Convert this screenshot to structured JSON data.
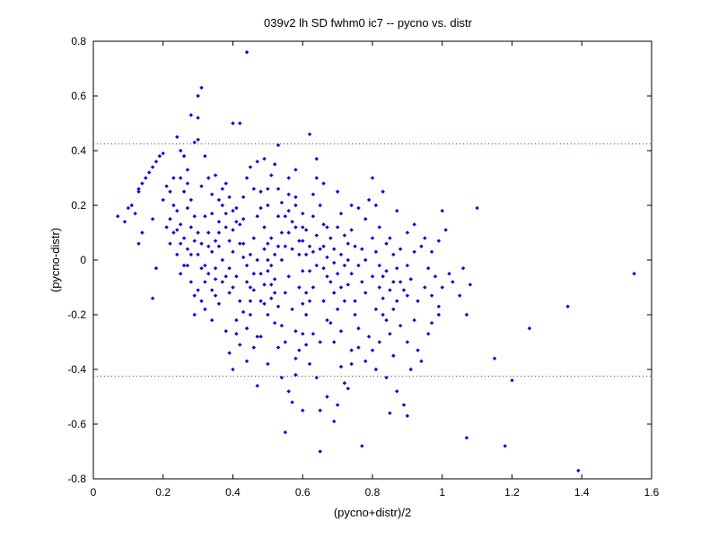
{
  "chart_data": {
    "type": "scatter",
    "title": "039v2 lh SD fwhm0 ic7 -- pycno vs. distr",
    "xlabel": "(pycno+distr)/2",
    "ylabel": "(pycno-distr)",
    "xlim": [
      0,
      1.6
    ],
    "ylim": [
      -0.8,
      0.8
    ],
    "xticks": [
      "0",
      "0.2",
      "0.4",
      "0.6",
      "0.8",
      "1",
      "1.2",
      "1.4",
      "1.6"
    ],
    "yticks": [
      "0.8",
      "0.6",
      "0.4",
      "0.2",
      "0",
      "-0.2",
      "-0.4",
      "-0.6",
      "-0.8"
    ],
    "grid": false,
    "marker_color": "#0000ff",
    "threshold_color": "#ff0000",
    "thresholds": [
      0.425,
      -0.425
    ],
    "points": [
      [
        0.07,
        0.16
      ],
      [
        0.09,
        0.14
      ],
      [
        0.1,
        0.19
      ],
      [
        0.11,
        0.2
      ],
      [
        0.12,
        0.17
      ],
      [
        0.13,
        0.25
      ],
      [
        0.13,
        0.26
      ],
      [
        0.14,
        0.28
      ],
      [
        0.15,
        0.3
      ],
      [
        0.16,
        0.32
      ],
      [
        0.17,
        0.34
      ],
      [
        0.18,
        0.36
      ],
      [
        0.19,
        0.38
      ],
      [
        0.2,
        0.39
      ],
      [
        0.14,
        0.1
      ],
      [
        0.13,
        0.06
      ],
      [
        0.17,
        0.15
      ],
      [
        0.18,
        -0.03
      ],
      [
        0.17,
        -0.14
      ],
      [
        0.2,
        0.22
      ],
      [
        0.21,
        0.27
      ],
      [
        0.22,
        0.25
      ],
      [
        0.23,
        0.2
      ],
      [
        0.24,
        0.45
      ],
      [
        0.25,
        0.4
      ],
      [
        0.26,
        0.38
      ],
      [
        0.27,
        0.33
      ],
      [
        0.25,
        0.3
      ],
      [
        0.28,
        0.53
      ],
      [
        0.3,
        0.52
      ],
      [
        0.31,
        0.63
      ],
      [
        0.3,
        0.6
      ],
      [
        0.29,
        0.43
      ],
      [
        0.3,
        0.44
      ],
      [
        0.32,
        0.38
      ],
      [
        0.25,
        0.13
      ],
      [
        0.26,
        0.08
      ],
      [
        0.27,
        0.04
      ],
      [
        0.22,
        0.15
      ],
      [
        0.24,
        0.02
      ],
      [
        0.27,
        -0.02
      ],
      [
        0.28,
        -0.08
      ],
      [
        0.3,
        -0.11
      ],
      [
        0.29,
        -0.2
      ],
      [
        0.32,
        -0.18
      ],
      [
        0.34,
        -0.22
      ],
      [
        0.35,
        -0.13
      ],
      [
        0.31,
        0.06
      ],
      [
        0.33,
        0.1
      ],
      [
        0.34,
        0.17
      ],
      [
        0.36,
        0.22
      ],
      [
        0.35,
        0.31
      ],
      [
        0.38,
        0.28
      ],
      [
        0.36,
        0.05
      ],
      [
        0.37,
        0.0
      ],
      [
        0.39,
        -0.03
      ],
      [
        0.4,
        0.11
      ],
      [
        0.4,
        0.5
      ],
      [
        0.42,
        0.5
      ],
      [
        0.44,
        0.76
      ],
      [
        0.38,
        -0.26
      ],
      [
        0.39,
        -0.34
      ],
      [
        0.41,
        -0.27
      ],
      [
        0.42,
        -0.31
      ],
      [
        0.44,
        -0.37
      ],
      [
        0.45,
        -0.2
      ],
      [
        0.45,
        -0.1
      ],
      [
        0.46,
        -0.05
      ],
      [
        0.4,
        -0.4
      ],
      [
        0.47,
        -0.46
      ],
      [
        0.5,
        -0.38
      ],
      [
        0.48,
        -0.28
      ],
      [
        0.5,
        -0.2
      ],
      [
        0.51,
        -0.14
      ],
      [
        0.52,
        -0.07
      ],
      [
        0.54,
        0.0
      ],
      [
        0.55,
        0.05
      ],
      [
        0.56,
        0.1
      ],
      [
        0.53,
        0.16
      ],
      [
        0.5,
        0.2
      ],
      [
        0.48,
        0.25
      ],
      [
        0.47,
        0.36
      ],
      [
        0.49,
        0.37
      ],
      [
        0.52,
        0.35
      ],
      [
        0.56,
        0.3
      ],
      [
        0.58,
        0.23
      ],
      [
        0.6,
        0.17
      ],
      [
        0.6,
        0.07
      ],
      [
        0.61,
        0.02
      ],
      [
        0.62,
        -0.04
      ],
      [
        0.63,
        -0.1
      ],
      [
        0.61,
        -0.2
      ],
      [
        0.6,
        -0.27
      ],
      [
        0.59,
        -0.33
      ],
      [
        0.58,
        -0.42
      ],
      [
        0.56,
        -0.48
      ],
      [
        0.54,
        -0.43
      ],
      [
        0.53,
        -0.32
      ],
      [
        0.55,
        -0.63
      ],
      [
        0.57,
        -0.52
      ],
      [
        0.6,
        -0.55
      ],
      [
        0.62,
        -0.38
      ],
      [
        0.64,
        -0.43
      ],
      [
        0.65,
        -0.55
      ],
      [
        0.67,
        -0.5
      ],
      [
        0.65,
        -0.7
      ],
      [
        0.69,
        -0.59
      ],
      [
        0.7,
        -0.53
      ],
      [
        0.72,
        -0.45
      ],
      [
        0.73,
        -0.47
      ],
      [
        0.71,
        -0.39
      ],
      [
        0.74,
        -0.33
      ],
      [
        0.76,
        -0.25
      ],
      [
        0.75,
        -0.15
      ],
      [
        0.77,
        -0.08
      ],
      [
        0.78,
        0.0
      ],
      [
        0.8,
        -0.06
      ],
      [
        0.82,
        -0.1
      ],
      [
        0.83,
        -0.2
      ],
      [
        0.85,
        -0.27
      ],
      [
        0.86,
        -0.35
      ],
      [
        0.84,
        -0.43
      ],
      [
        0.87,
        -0.48
      ],
      [
        0.85,
        -0.56
      ],
      [
        0.77,
        -0.68
      ],
      [
        0.81,
        -0.4
      ],
      [
        0.89,
        -0.53
      ],
      [
        0.9,
        -0.57
      ],
      [
        0.91,
        -0.4
      ],
      [
        0.93,
        -0.33
      ],
      [
        0.94,
        -0.37
      ],
      [
        0.92,
        -0.22
      ],
      [
        0.96,
        -0.27
      ],
      [
        0.97,
        -0.13
      ],
      [
        0.99,
        -0.17
      ],
      [
        0.98,
        -0.06
      ],
      [
        0.99,
        0.07
      ],
      [
        1.0,
        0.18
      ],
      [
        1.01,
        0.11
      ],
      [
        1.03,
        -0.08
      ],
      [
        1.05,
        -0.13
      ],
      [
        1.06,
        -0.03
      ],
      [
        1.07,
        -0.2
      ],
      [
        1.08,
        -0.09
      ],
      [
        1.1,
        0.19
      ],
      [
        1.07,
        -0.65
      ],
      [
        1.15,
        -0.36
      ],
      [
        1.18,
        -0.68
      ],
      [
        1.2,
        -0.44
      ],
      [
        1.25,
        -0.25
      ],
      [
        1.36,
        -0.17
      ],
      [
        1.39,
        -0.77
      ],
      [
        1.55,
        -0.05
      ],
      [
        0.9,
        0.1
      ],
      [
        0.88,
        0.04
      ],
      [
        0.86,
        0.02
      ],
      [
        0.84,
        0.06
      ],
      [
        0.82,
        0.12
      ],
      [
        0.8,
        0.3
      ],
      [
        0.79,
        0.22
      ],
      [
        0.76,
        0.19
      ],
      [
        0.74,
        0.11
      ],
      [
        0.73,
        0.06
      ],
      [
        0.71,
        0.02
      ],
      [
        0.69,
        -0.01
      ],
      [
        0.68,
        0.08
      ],
      [
        0.66,
        0.13
      ],
      [
        0.65,
        0.2
      ],
      [
        0.63,
        0.24
      ],
      [
        0.62,
        0.46
      ],
      [
        0.64,
        0.3
      ],
      [
        0.67,
        -0.06
      ],
      [
        0.66,
        -0.15
      ],
      [
        0.68,
        -0.23
      ],
      [
        0.69,
        -0.12
      ],
      [
        0.7,
        -0.18
      ],
      [
        0.72,
        -0.02
      ],
      [
        0.73,
        -0.09
      ],
      [
        0.75,
        -0.2
      ],
      [
        0.78,
        -0.12
      ],
      [
        0.79,
        -0.28
      ],
      [
        0.81,
        -0.18
      ],
      [
        0.83,
        -0.14
      ],
      [
        0.84,
        -0.04
      ],
      [
        0.86,
        -0.08
      ],
      [
        0.87,
        -0.15
      ],
      [
        0.89,
        -0.11
      ],
      [
        0.9,
        -0.02
      ],
      [
        0.91,
        -0.07
      ],
      [
        0.92,
        0.03
      ],
      [
        0.94,
        0.05
      ],
      [
        0.95,
        -0.1
      ],
      [
        0.93,
        -0.15
      ],
      [
        0.97,
        0.03
      ],
      [
        0.52,
        0.02
      ],
      [
        0.51,
        0.08
      ],
      [
        0.5,
        -0.04
      ],
      [
        0.49,
        0.12
      ],
      [
        0.47,
        0.16
      ],
      [
        0.46,
        0.08
      ],
      [
        0.45,
        0.02
      ],
      [
        0.44,
        -0.08
      ],
      [
        0.43,
        0.06
      ],
      [
        0.42,
        0.13
      ],
      [
        0.41,
        0.19
      ],
      [
        0.43,
        0.23
      ],
      [
        0.44,
        0.3
      ],
      [
        0.46,
        0.26
      ],
      [
        0.48,
        0.19
      ],
      [
        0.49,
        0.04
      ],
      [
        0.5,
        0.0
      ],
      [
        0.51,
        -0.09
      ],
      [
        0.53,
        -0.17
      ],
      [
        0.54,
        -0.24
      ],
      [
        0.55,
        -0.12
      ],
      [
        0.56,
        -0.06
      ],
      [
        0.57,
        0.04
      ],
      [
        0.58,
        0.12
      ],
      [
        0.59,
        0.07
      ],
      [
        0.6,
        -0.04
      ],
      [
        0.61,
        -0.12
      ],
      [
        0.62,
        -0.15
      ],
      [
        0.63,
        0.03
      ],
      [
        0.64,
        -0.02
      ],
      [
        0.65,
        0.04
      ],
      [
        0.66,
        -0.03
      ],
      [
        0.67,
        0.12
      ],
      [
        0.7,
        0.12
      ],
      [
        0.71,
        0.17
      ],
      [
        0.72,
        0.09
      ],
      [
        0.31,
        0.27
      ],
      [
        0.33,
        0.3
      ],
      [
        0.34,
        0.24
      ],
      [
        0.35,
        0.07
      ],
      [
        0.36,
        0.14
      ],
      [
        0.37,
        0.2
      ],
      [
        0.38,
        0.12
      ],
      [
        0.39,
        0.07
      ],
      [
        0.4,
        0.03
      ],
      [
        0.41,
        -0.06
      ],
      [
        0.42,
        -0.15
      ],
      [
        0.43,
        -0.19
      ],
      [
        0.39,
        -0.12
      ],
      [
        0.37,
        -0.08
      ],
      [
        0.36,
        -0.16
      ],
      [
        0.35,
        -0.03
      ],
      [
        0.34,
        0.03
      ],
      [
        0.33,
        -0.05
      ],
      [
        0.32,
        -0.08
      ],
      [
        0.31,
        -0.03
      ],
      [
        0.3,
        0.02
      ],
      [
        0.29,
        0.07
      ],
      [
        0.28,
        0.12
      ],
      [
        0.27,
        0.19
      ],
      [
        0.26,
        0.25
      ],
      [
        0.24,
        0.18
      ],
      [
        0.23,
        0.1
      ],
      [
        0.22,
        0.06
      ],
      [
        0.21,
        0.12
      ],
      [
        0.23,
        0.3
      ],
      [
        0.27,
        0.28
      ],
      [
        0.28,
        0.22
      ],
      [
        0.32,
        0.16
      ],
      [
        0.47,
        -0.28
      ],
      [
        0.48,
        -0.15
      ],
      [
        0.49,
        -0.09
      ],
      [
        0.52,
        -0.23
      ],
      [
        0.55,
        -0.3
      ],
      [
        0.57,
        -0.18
      ],
      [
        0.58,
        -0.26
      ],
      [
        0.59,
        -0.1
      ],
      [
        0.6,
        -0.16
      ],
      [
        0.61,
        0.11
      ],
      [
        0.62,
        0.05
      ],
      [
        0.63,
        0.16
      ],
      [
        0.64,
        0.09
      ],
      [
        0.66,
        0.05
      ],
      [
        0.67,
        0.01
      ],
      [
        0.68,
        -0.08
      ],
      [
        0.69,
        0.04
      ],
      [
        0.7,
        -0.05
      ],
      [
        0.71,
        -0.1
      ],
      [
        0.72,
        -0.15
      ],
      [
        0.73,
        0.0
      ],
      [
        0.74,
        -0.05
      ],
      [
        0.75,
        0.05
      ],
      [
        0.76,
        -0.02
      ],
      [
        0.77,
        0.04
      ],
      [
        0.8,
        0.08
      ],
      [
        0.81,
        0.03
      ],
      [
        0.82,
        -0.02
      ],
      [
        0.83,
        -0.06
      ],
      [
        0.85,
        -0.11
      ],
      [
        0.87,
        -0.03
      ],
      [
        0.88,
        -0.08
      ],
      [
        0.9,
        -0.13
      ],
      [
        0.85,
        0.08
      ],
      [
        0.53,
        0.26
      ],
      [
        0.54,
        0.21
      ],
      [
        0.56,
        0.18
      ],
      [
        0.57,
        0.14
      ],
      [
        0.58,
        0.2
      ],
      [
        0.59,
        0.02
      ],
      [
        0.6,
        0.12
      ],
      [
        0.56,
        0.24
      ],
      [
        0.55,
        0.16
      ],
      [
        0.54,
        0.1
      ],
      [
        0.53,
        0.05
      ],
      [
        0.52,
        -0.12
      ],
      [
        0.51,
        -0.02
      ],
      [
        0.5,
        0.06
      ],
      [
        0.49,
        -0.16
      ],
      [
        0.48,
        -0.05
      ],
      [
        0.47,
        0.0
      ],
      [
        0.46,
        -0.11
      ],
      [
        0.45,
        -0.15
      ],
      [
        0.44,
        -0.02
      ],
      [
        0.43,
        0.01
      ],
      [
        0.42,
        0.06
      ],
      [
        0.41,
        0.14
      ],
      [
        0.4,
        0.18
      ],
      [
        0.39,
        0.23
      ],
      [
        0.38,
        0.17
      ],
      [
        0.37,
        0.26
      ],
      [
        0.36,
        0.1
      ],
      [
        0.35,
        -0.07
      ],
      [
        0.34,
        -0.11
      ],
      [
        0.33,
        0.05
      ],
      [
        0.32,
        -0.02
      ],
      [
        0.3,
        0.1
      ],
      [
        0.29,
        0.16
      ],
      [
        0.28,
        0.02
      ],
      [
        0.26,
        -0.02
      ],
      [
        0.25,
        0.06
      ],
      [
        0.24,
        0.11
      ],
      [
        0.25,
        -0.05
      ],
      [
        0.29,
        -0.13
      ],
      [
        0.31,
        -0.15
      ],
      [
        0.38,
        -0.06
      ],
      [
        0.4,
        -0.1
      ],
      [
        0.41,
        -0.22
      ],
      [
        0.44,
        -0.25
      ],
      [
        0.46,
        -0.32
      ],
      [
        0.58,
        -0.36
      ],
      [
        0.61,
        -0.31
      ],
      [
        0.63,
        -0.27
      ],
      [
        0.65,
        -0.3
      ],
      [
        0.67,
        -0.22
      ],
      [
        0.69,
        -0.3
      ],
      [
        0.71,
        -0.26
      ],
      [
        0.74,
        -0.38
      ],
      [
        0.76,
        -0.32
      ],
      [
        0.78,
        -0.37
      ],
      [
        0.8,
        -0.33
      ],
      [
        0.82,
        -0.3
      ],
      [
        0.84,
        -0.22
      ],
      [
        0.86,
        -0.18
      ],
      [
        0.88,
        -0.24
      ],
      [
        0.9,
        -0.3
      ],
      [
        0.64,
        0.37
      ],
      [
        0.66,
        0.28
      ],
      [
        0.7,
        0.25
      ],
      [
        0.74,
        0.2
      ],
      [
        0.78,
        0.15
      ],
      [
        0.81,
        0.2
      ],
      [
        0.83,
        0.25
      ],
      [
        0.87,
        0.18
      ],
      [
        0.92,
        0.13
      ],
      [
        0.95,
        0.08
      ],
      [
        0.96,
        -0.03
      ],
      [
        1.0,
        -0.1
      ],
      [
        1.02,
        -0.05
      ],
      [
        0.99,
        -0.2
      ],
      [
        0.97,
        -0.23
      ],
      [
        0.53,
        0.42
      ],
      [
        0.58,
        0.33
      ],
      [
        0.51,
        0.31
      ],
      [
        0.45,
        0.34
      ],
      [
        0.5,
        0.26
      ],
      [
        0.43,
        0.15
      ]
    ]
  }
}
